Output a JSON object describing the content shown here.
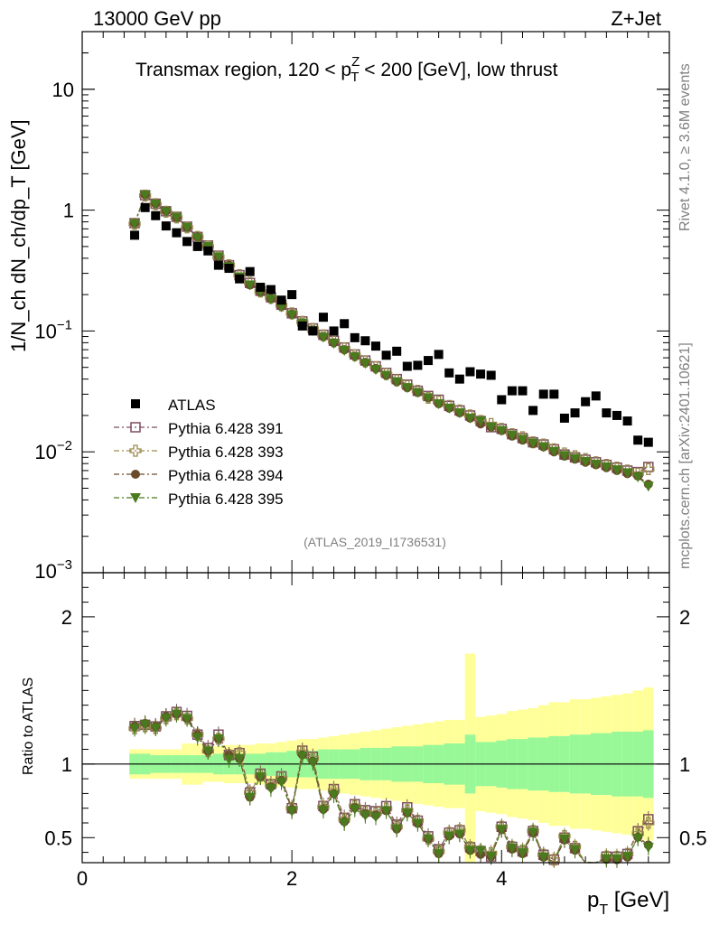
{
  "header": {
    "left": "13000 GeV pp",
    "right": "Z+Jet"
  },
  "chart_data": {
    "type": "scatter",
    "title_parts": {
      "prefix": "Transmax region, 120 < p",
      "sup": "Z",
      "sub": "T",
      "suffix": " < 200 [GeV], low thrust"
    },
    "xlabel_main": "p",
    "xlabel_sub": "T",
    "xlabel_unit": " [GeV]",
    "ylabel": "1/N_ch dN_ch/dp_T [GeV]",
    "ratio_ylabel": "Ratio to ATLAS",
    "xlim": [
      0,
      5.6
    ],
    "ylim_log": [
      0.001,
      30
    ],
    "ratio_ylim": [
      0.33,
      2.3
    ],
    "x_ticks": [
      "0",
      "2",
      "4"
    ],
    "y_ticks": [
      {
        "value": 10,
        "base": "10",
        "exp": ""
      },
      {
        "value": 1,
        "base": "1",
        "exp": ""
      },
      {
        "value": 0.1,
        "base": "10",
        "exp": "−1"
      },
      {
        "value": 0.01,
        "base": "10",
        "exp": "−2"
      },
      {
        "value": 0.001,
        "base": "10",
        "exp": "−3"
      }
    ],
    "ratio_ticks": [
      "0.5",
      "1",
      "2"
    ],
    "side_texts": {
      "rivet": "Rivet 4.1.0, ≥ 3.6M events",
      "mcplots": "mcplots.cern.ch [arXiv:2401.10621]"
    },
    "analysis_id": "(ATLAS_2019_I1736531)",
    "x": [
      0.5,
      0.6,
      0.7,
      0.8,
      0.9,
      1.0,
      1.1,
      1.2,
      1.3,
      1.4,
      1.5,
      1.6,
      1.7,
      1.8,
      1.9,
      2.0,
      2.1,
      2.2,
      2.3,
      2.4,
      2.5,
      2.6,
      2.7,
      2.8,
      2.9,
      3.0,
      3.1,
      3.2,
      3.3,
      3.4,
      3.5,
      3.6,
      3.7,
      3.8,
      3.9,
      4.0,
      4.1,
      4.2,
      4.3,
      4.4,
      4.5,
      4.6,
      4.7,
      4.8,
      4.9,
      5.0,
      5.1,
      5.2,
      5.3,
      5.4
    ],
    "atlas": [
      0.62,
      1.05,
      0.9,
      0.74,
      0.65,
      0.55,
      0.5,
      0.46,
      0.35,
      0.33,
      0.27,
      0.31,
      0.23,
      0.22,
      0.18,
      0.2,
      0.11,
      0.1,
      0.13,
      0.1,
      0.115,
      0.088,
      0.083,
      0.075,
      0.063,
      0.068,
      0.051,
      0.052,
      0.057,
      0.064,
      0.045,
      0.04,
      0.046,
      0.044,
      0.043,
      0.027,
      0.032,
      0.032,
      0.022,
      0.03,
      0.03,
      0.019,
      0.021,
      0.026,
      0.029,
      0.021,
      0.02,
      0.018,
      0.0125,
      0.012
    ],
    "series": [
      {
        "name": "Pythia 6.428 391",
        "color": "#7c4e60",
        "marker": "open-square",
        "values": [
          0.78,
          1.33,
          1.13,
          0.98,
          0.88,
          0.73,
          0.6,
          0.51,
          0.42,
          0.35,
          0.29,
          0.25,
          0.215,
          0.19,
          0.165,
          0.14,
          0.12,
          0.105,
          0.093,
          0.083,
          0.073,
          0.064,
          0.057,
          0.051,
          0.045,
          0.04,
          0.036,
          0.032,
          0.029,
          0.027,
          0.024,
          0.022,
          0.02,
          0.018,
          0.016,
          0.0155,
          0.014,
          0.013,
          0.012,
          0.0115,
          0.0105,
          0.0095,
          0.009,
          0.0086,
          0.0082,
          0.0078,
          0.0074,
          0.007,
          0.0068,
          0.0075
        ]
      },
      {
        "name": "Pythia 6.428 393",
        "color": "#9a8a4e",
        "marker": "open-cross",
        "values": [
          0.77,
          1.32,
          1.12,
          0.97,
          0.87,
          0.72,
          0.6,
          0.5,
          0.41,
          0.35,
          0.29,
          0.25,
          0.212,
          0.188,
          0.163,
          0.14,
          0.119,
          0.104,
          0.092,
          0.082,
          0.072,
          0.063,
          0.056,
          0.05,
          0.044,
          0.039,
          0.035,
          0.032,
          0.028,
          0.026,
          0.024,
          0.022,
          0.02,
          0.018,
          0.017,
          0.0155,
          0.014,
          0.0132,
          0.012,
          0.0115,
          0.0105,
          0.0097,
          0.0092,
          0.0087,
          0.0082,
          0.0078,
          0.0074,
          0.007,
          0.0066,
          0.0072
        ]
      },
      {
        "name": "Pythia 6.428 394",
        "color": "#6a4a2a",
        "marker": "filled-circle",
        "values": [
          0.78,
          1.34,
          1.13,
          0.98,
          0.87,
          0.72,
          0.6,
          0.5,
          0.41,
          0.35,
          0.28,
          0.24,
          0.21,
          0.186,
          0.16,
          0.138,
          0.117,
          0.102,
          0.09,
          0.08,
          0.07,
          0.062,
          0.055,
          0.049,
          0.043,
          0.038,
          0.034,
          0.031,
          0.028,
          0.025,
          0.023,
          0.021,
          0.019,
          0.017,
          0.016,
          0.015,
          0.0135,
          0.0125,
          0.0117,
          0.011,
          0.01,
          0.0092,
          0.0087,
          0.0082,
          0.0078,
          0.0074,
          0.007,
          0.0066,
          0.0063,
          0.0054
        ]
      },
      {
        "name": "Pythia 6.428 395",
        "color": "#4a7a1e",
        "marker": "filled-triangle-down",
        "values": [
          0.77,
          1.33,
          1.12,
          0.97,
          0.87,
          0.72,
          0.59,
          0.5,
          0.41,
          0.34,
          0.28,
          0.24,
          0.21,
          0.183,
          0.158,
          0.136,
          0.116,
          0.101,
          0.089,
          0.079,
          0.069,
          0.061,
          0.054,
          0.048,
          0.043,
          0.038,
          0.034,
          0.031,
          0.028,
          0.025,
          0.023,
          0.021,
          0.019,
          0.018,
          0.016,
          0.015,
          0.0137,
          0.0127,
          0.0118,
          0.011,
          0.0101,
          0.0093,
          0.0088,
          0.0083,
          0.0079,
          0.0075,
          0.0071,
          0.0067,
          0.0062,
          0.0052
        ]
      }
    ],
    "ratio_band_inner": [
      0.07,
      0.07,
      0.06,
      0.06,
      0.06,
      0.06,
      0.06,
      0.06,
      0.07,
      0.07,
      0.07,
      0.07,
      0.07,
      0.08,
      0.08,
      0.09,
      0.09,
      0.09,
      0.1,
      0.1,
      0.1,
      0.1,
      0.11,
      0.11,
      0.11,
      0.12,
      0.12,
      0.12,
      0.13,
      0.13,
      0.14,
      0.14,
      0.2,
      0.15,
      0.15,
      0.16,
      0.17,
      0.17,
      0.18,
      0.18,
      0.19,
      0.19,
      0.2,
      0.2,
      0.21,
      0.21,
      0.22,
      0.22,
      0.22,
      0.23
    ],
    "ratio_band_outer": [
      0.1,
      0.1,
      0.1,
      0.1,
      0.1,
      0.14,
      0.14,
      0.12,
      0.12,
      0.13,
      0.13,
      0.13,
      0.14,
      0.14,
      0.15,
      0.16,
      0.17,
      0.17,
      0.18,
      0.19,
      0.2,
      0.21,
      0.22,
      0.23,
      0.24,
      0.25,
      0.26,
      0.27,
      0.28,
      0.29,
      0.3,
      0.3,
      0.75,
      0.32,
      0.33,
      0.34,
      0.36,
      0.37,
      0.38,
      0.4,
      0.42,
      0.42,
      0.44,
      0.44,
      0.45,
      0.46,
      0.47,
      0.48,
      0.5,
      0.52
    ],
    "legend": {
      "atlas_label": "ATLAS",
      "position": "middle-left"
    }
  },
  "colors": {
    "band_inner": "#98f898",
    "band_outer": "#ffff9a"
  }
}
